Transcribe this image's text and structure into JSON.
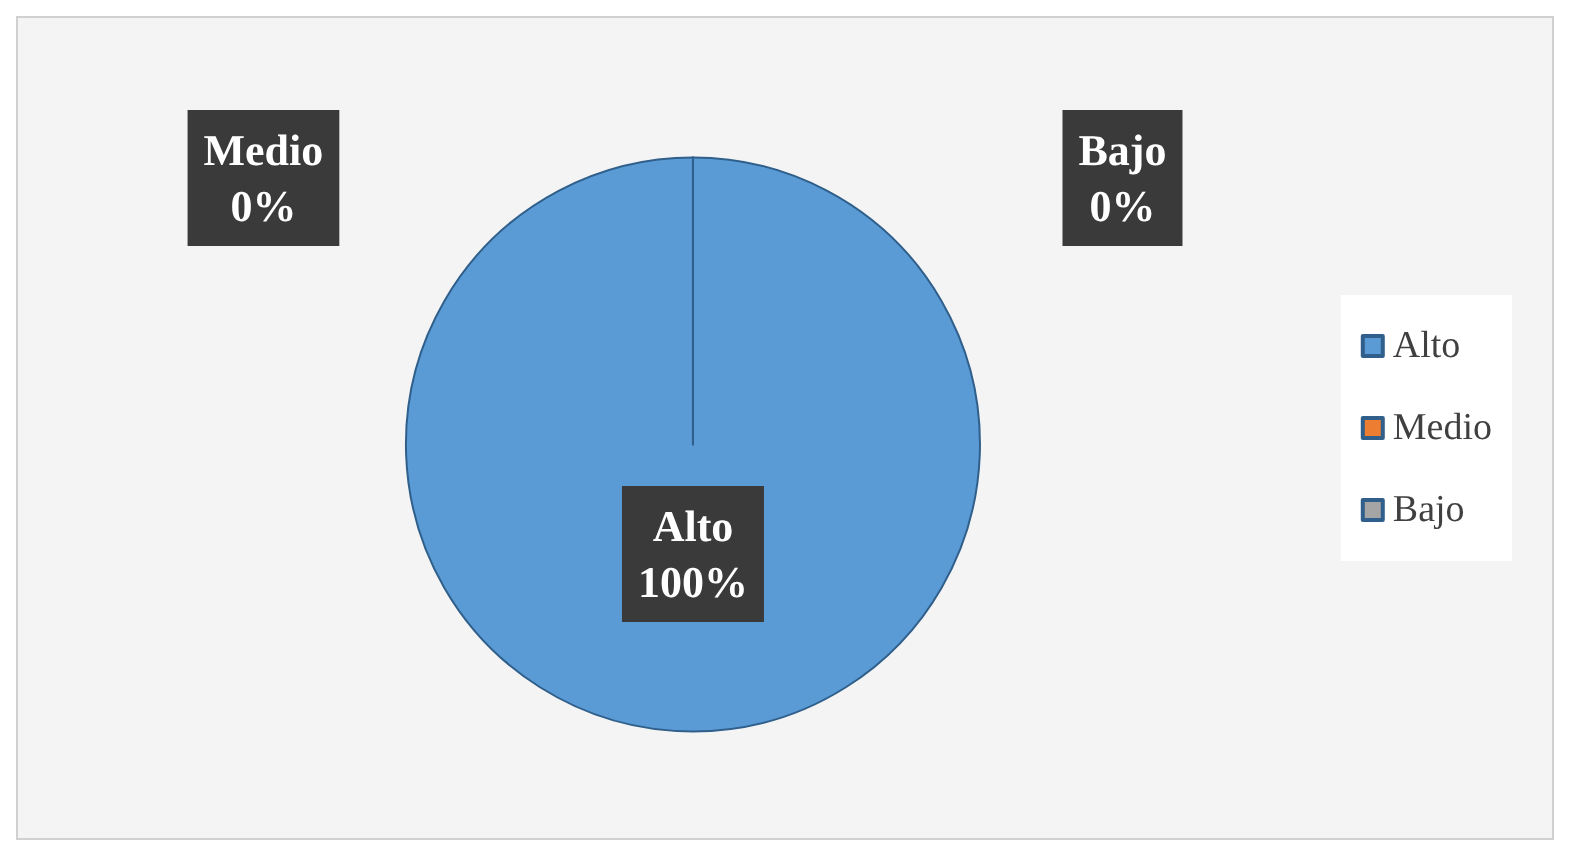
{
  "chart_data": {
    "type": "pie",
    "categories": [
      "Alto",
      "Medio",
      "Bajo"
    ],
    "values": [
      100,
      0,
      0
    ],
    "value_labels": [
      "100%",
      "0%",
      "0%"
    ],
    "colors": [
      "#5b9bd5",
      "#ed7d31",
      "#a5a5a5"
    ],
    "legend": "right"
  }
}
